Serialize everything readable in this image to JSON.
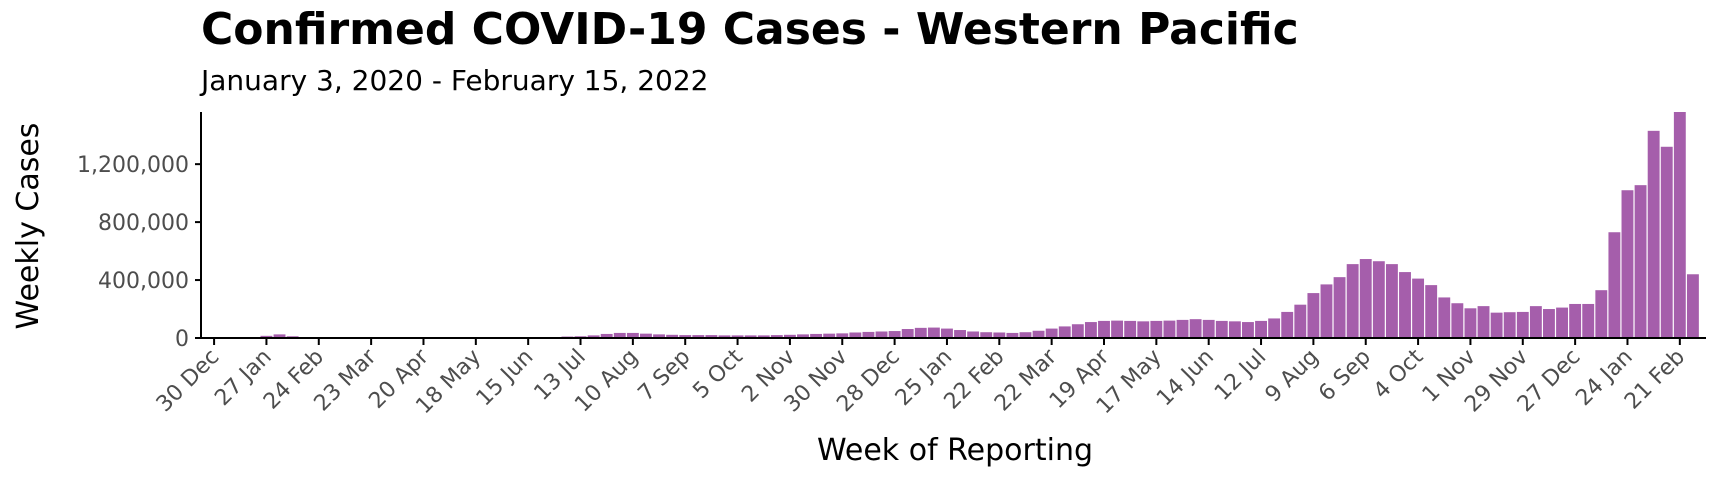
{
  "chart_data": {
    "type": "bar",
    "title": "Confirmed COVID-19 Cases - Western Pacific",
    "subtitle": "January 3, 2020 - February 15, 2022",
    "xlabel": "Week of Reporting",
    "ylabel": "Weekly Cases",
    "x_start_date": "2019-12-30",
    "x_ticks": [
      "30 Dec",
      "27 Jan",
      "24 Feb",
      "23 Mar",
      "20 Apr",
      "18 May",
      "15 Jun",
      "13 Jul",
      "10 Aug",
      "7 Sep",
      "5 Oct",
      "2 Nov",
      "30 Nov",
      "28 Dec",
      "25 Jan",
      "22 Feb",
      "22 Mar",
      "19 Apr",
      "17 May",
      "14 Jun",
      "12 Jul",
      "9 Aug",
      "6 Sep",
      "4 Oct",
      "1 Nov",
      "29 Nov",
      "27 Dec",
      "24 Jan",
      "21 Feb"
    ],
    "y_ticks": [
      0,
      400000,
      800000,
      1200000
    ],
    "y_tick_labels": [
      "0",
      "400,000",
      "800,000",
      "1,200,000"
    ],
    "ylim": [
      0,
      1560000
    ],
    "grid": false,
    "bar_color": "#a55eab",
    "values": [
      50,
      100,
      500,
      2000,
      15000,
      25000,
      12000,
      5000,
      2500,
      2000,
      1500,
      1500,
      2000,
      2500,
      3000,
      3000,
      2500,
      2000,
      1500,
      1500,
      1500,
      1500,
      2000,
      3000,
      3000,
      4000,
      6000,
      10000,
      12000,
      18000,
      28000,
      35000,
      35000,
      30000,
      25000,
      22000,
      20000,
      20000,
      20000,
      18000,
      18000,
      18000,
      18000,
      20000,
      22000,
      25000,
      28000,
      30000,
      32000,
      38000,
      42000,
      45000,
      48000,
      62000,
      70000,
      72000,
      65000,
      55000,
      45000,
      40000,
      38000,
      35000,
      40000,
      50000,
      65000,
      80000,
      95000,
      110000,
      118000,
      120000,
      118000,
      115000,
      118000,
      120000,
      125000,
      130000,
      125000,
      118000,
      115000,
      110000,
      118000,
      135000,
      180000,
      230000,
      310000,
      370000,
      420000,
      510000,
      545000,
      530000,
      510000,
      455000,
      410000,
      365000,
      280000,
      240000,
      205000,
      220000,
      175000,
      178000,
      180000,
      220000,
      200000,
      210000,
      235000,
      235000,
      330000,
      730000,
      1020000,
      1055000,
      1430000,
      1320000,
      1560000,
      440000
    ]
  }
}
